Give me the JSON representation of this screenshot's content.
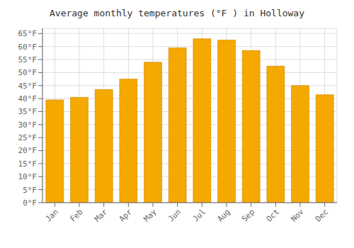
{
  "chart_data": {
    "type": "bar",
    "title": "Average monthly temperatures (°F ) in Holloway",
    "categories": [
      "Jan",
      "Feb",
      "Mar",
      "Apr",
      "May",
      "Jun",
      "Jul",
      "Aug",
      "Sep",
      "Oct",
      "Nov",
      "Dec"
    ],
    "values": [
      39.5,
      40.5,
      43.5,
      47.5,
      54.0,
      59.5,
      63.0,
      62.5,
      58.5,
      52.5,
      45.0,
      41.5
    ],
    "color": "#F5A800",
    "ylim": [
      0,
      67
    ],
    "yticks": [
      {
        "value": 0,
        "label": "0°F"
      },
      {
        "value": 5,
        "label": "5°F"
      },
      {
        "value": 10,
        "label": "10°F"
      },
      {
        "value": 15,
        "label": "15°F"
      },
      {
        "value": 20,
        "label": "20°F"
      },
      {
        "value": 25,
        "label": "25°F"
      },
      {
        "value": 30,
        "label": "30°F"
      },
      {
        "value": 35,
        "label": "35°F"
      },
      {
        "value": 40,
        "label": "40°F"
      },
      {
        "value": 45,
        "label": "45°F"
      },
      {
        "value": 50,
        "label": "50°F"
      },
      {
        "value": 55,
        "label": "55°F"
      },
      {
        "value": 60,
        "label": "60°F"
      },
      {
        "value": 65,
        "label": "65°F"
      }
    ],
    "grid": true
  }
}
